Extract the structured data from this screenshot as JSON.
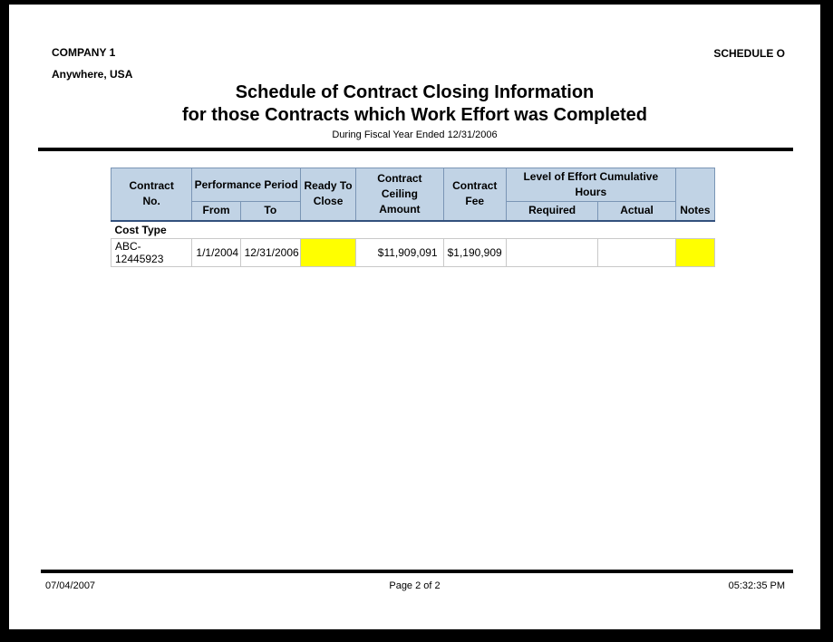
{
  "colors": {
    "page_bg": "#FFFFFF",
    "frame_bg": "#000000",
    "header_bg": "#C1D3E5",
    "header_border": "#7A95B5",
    "header_border_dark": "#33517D",
    "cell_border": "#C9C9C9",
    "highlight": "#FFFF00"
  },
  "report": {
    "company_name": "COMPANY 1",
    "company_location": "Anywhere, USA",
    "schedule_label": "SCHEDULE O",
    "title_line1": "Schedule of Contract Closing Information",
    "title_line2": "for those Contracts which Work Effort was Completed",
    "subtitle": "During Fiscal Year Ended 12/31/2006"
  },
  "table": {
    "header": {
      "contract": "Contract",
      "contract_sub": "No.",
      "performance_period": "Performance Period",
      "from": "From",
      "to": "To",
      "ready_to": "Ready To",
      "close": "Close",
      "contract_ceiling": "Contract Ceiling",
      "amount": "Amount",
      "contract_fee": "Contract",
      "fee": "Fee",
      "level_of_effort": "Level of Effort Cumulative Hours",
      "required": "Required",
      "actual": "Actual",
      "notes": "Notes"
    },
    "group_label": "Cost Type",
    "rows": [
      {
        "contract_no": "ABC-12445923",
        "from": "1/1/2004",
        "to": "12/31/2006",
        "ready_to_close": "",
        "ceiling_amount": "$11,909,091",
        "fee": "$1,190,909",
        "required": "",
        "actual": "",
        "notes": ""
      }
    ]
  },
  "footer": {
    "date": "07/04/2007",
    "page_label": "Page 2 of 2",
    "time": "05:32:35 PM"
  }
}
